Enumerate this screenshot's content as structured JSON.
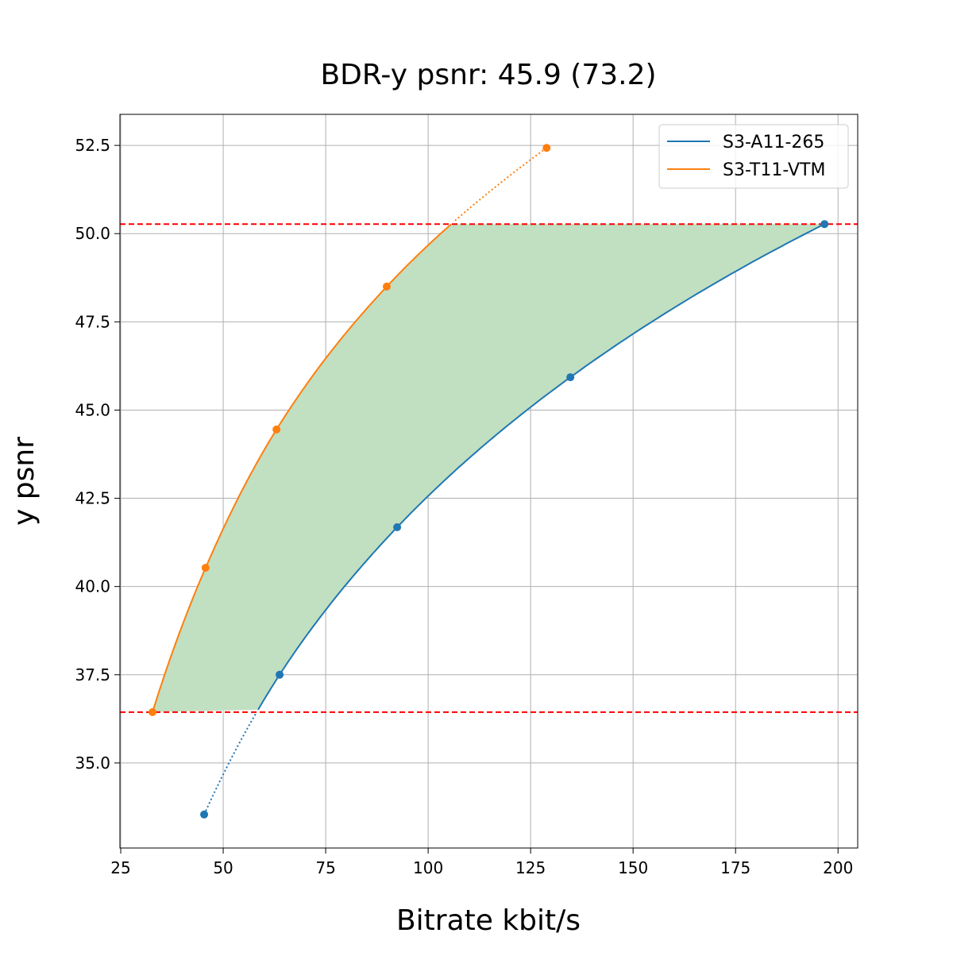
{
  "chart_data": {
    "type": "line",
    "title": "BDR-y psnr: 45.9 (73.2)",
    "xlabel": "Bitrate kbit/s",
    "ylabel": "y psnr",
    "xlim": [
      24.8,
      204.8
    ],
    "ylim": [
      32.59,
      53.38
    ],
    "xticks": [
      25,
      50,
      75,
      100,
      125,
      150,
      175,
      200
    ],
    "yticks": [
      35.0,
      37.5,
      40.0,
      42.5,
      45.0,
      47.5,
      50.0,
      52.5
    ],
    "grid": true,
    "legend_position": "top-right",
    "series": [
      {
        "name": "S3-A11-265",
        "color": "#1f77b4",
        "x": [
          45.35,
          63.76,
          92.44,
          134.7,
          196.7
        ],
        "y": [
          33.54,
          37.5,
          41.68,
          45.93,
          50.27
        ]
      },
      {
        "name": "S3-T11-VTM",
        "color": "#ff7f0e",
        "x": [
          32.75,
          45.7,
          63.0,
          89.9,
          128.9
        ],
        "y": [
          36.44,
          40.53,
          44.45,
          48.5,
          52.43
        ]
      }
    ],
    "reference_lines": {
      "orientation": "horizontal",
      "style": "dashed",
      "color": "#ff0000",
      "y": [
        36.44,
        50.27
      ]
    },
    "fill_between": {
      "color": "#c1dfc1",
      "y_range": [
        36.44,
        50.27
      ]
    }
  }
}
